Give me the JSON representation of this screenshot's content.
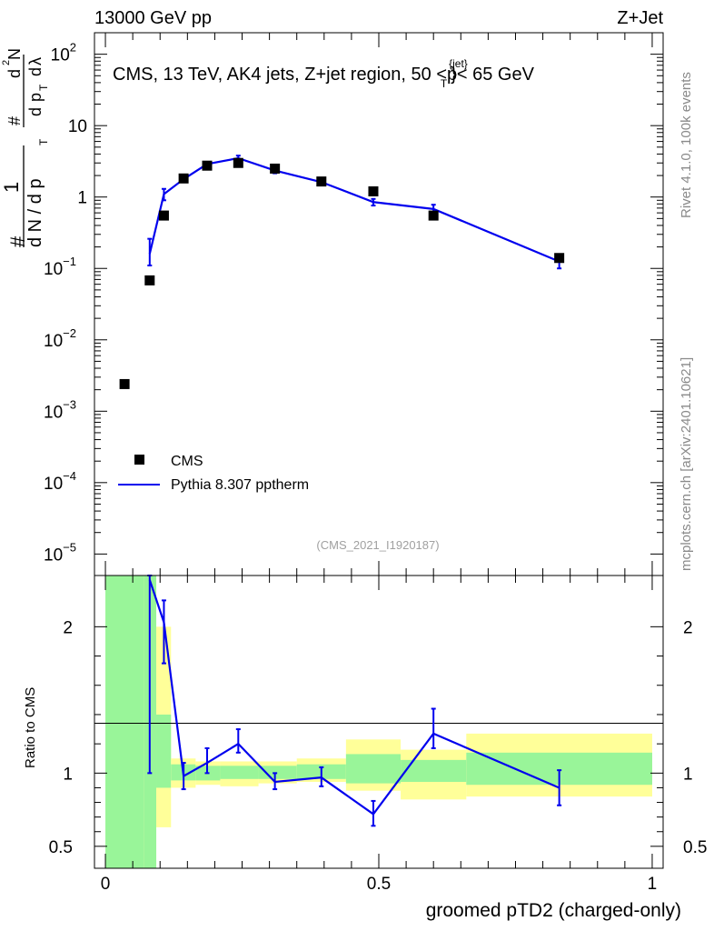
{
  "header": {
    "left": "13000 GeV pp",
    "right": "Z+Jet"
  },
  "main_title": "CMS, 13 TeV, AK4 jets, Z+jet region, 50 <p",
  "main_title_sup": "{jet}",
  "main_title_sub": "T",
  "main_title_end": "}< 65 GeV",
  "watermark": "(CMS_2021_I1920187)",
  "side_label_top": "Rivet 4.1.0,  100k events",
  "side_label_bottom": "mcplots.cern.ch [arXiv:2401.10621]",
  "legend": {
    "data_label": "CMS",
    "mc_label": "Pythia 8.307 pptherm"
  },
  "colors": {
    "data": "#000000",
    "mc": "#0000ee",
    "band_inner": "#99f599",
    "band_outer": "#ffff99"
  },
  "chart_data": [
    {
      "type": "scatter",
      "panel": "main",
      "ylabel_parts": [
        "#",
        "1",
        "d N / d p",
        "T",
        "#",
        "d",
        "p",
        "T",
        "d",
        "λ",
        "d",
        "2",
        "N"
      ],
      "yscale": "log",
      "ylim": [
        5e-06,
        200
      ],
      "xlim": [
        -0.02,
        1.02
      ],
      "y_tick_labels": [
        "10",
        "1",
        "10",
        "10",
        "10",
        "10",
        "10",
        "10"
      ],
      "y_tick_values": [
        10,
        1
      ],
      "y_decade_labels": [
        {
          "base": "10",
          "exp": "2",
          "value": 100
        },
        {
          "base": "10",
          "exp": "",
          "value": 10
        },
        {
          "base": "1",
          "exp": "",
          "value": 1
        },
        {
          "base": "10",
          "exp": "−1",
          "value": 0.1
        },
        {
          "base": "10",
          "exp": "−2",
          "value": 0.01
        },
        {
          "base": "10",
          "exp": "−3",
          "value": 0.001
        },
        {
          "base": "10",
          "exp": "−4",
          "value": 0.0001
        },
        {
          "base": "10",
          "exp": "−5",
          "value": 1e-05
        }
      ],
      "series": [
        {
          "name": "CMS",
          "style": "markers",
          "x": [
            0.035,
            0.081,
            0.107,
            0.143,
            0.186,
            0.243,
            0.31,
            0.395,
            0.49,
            0.6,
            0.83
          ],
          "y": [
            0.0024,
            0.068,
            0.55,
            1.82,
            2.75,
            3.0,
            2.5,
            1.65,
            1.2,
            0.55,
            0.14
          ]
        },
        {
          "name": "Pythia 8.307 pptherm",
          "style": "line",
          "x": [
            0.081,
            0.107,
            0.143,
            0.186,
            0.243,
            0.31,
            0.395,
            0.49,
            0.6,
            0.83
          ],
          "y": [
            0.16,
            1.1,
            1.78,
            2.9,
            3.5,
            2.35,
            1.62,
            0.85,
            0.68,
            0.125
          ],
          "yerr_lo": [
            0.11,
            0.9,
            1.62,
            2.7,
            3.2,
            2.15,
            1.5,
            0.76,
            0.58,
            0.1
          ],
          "yerr_hi": [
            0.26,
            1.3,
            1.96,
            3.1,
            3.8,
            2.55,
            1.75,
            0.94,
            0.78,
            0.15
          ]
        }
      ]
    },
    {
      "type": "line",
      "panel": "ratio",
      "ylabel": "Ratio to CMS",
      "xlabel": "groomed pTD2 (charged-only)",
      "ylim": [
        0.35,
        2.35
      ],
      "xlim": [
        -0.02,
        1.02
      ],
      "x_tick_labels": [
        "0",
        "0.5",
        "1"
      ],
      "x_tick_values": [
        0,
        0.5,
        1
      ],
      "y_tick_labels": [
        "2",
        "1",
        "0.5"
      ],
      "y_tick_values": [
        2,
        1,
        0.5
      ],
      "bands": {
        "edges": [
          0.0,
          0.07,
          0.093,
          0.12,
          0.165,
          0.21,
          0.28,
          0.35,
          0.44,
          0.54,
          0.66,
          1.0
        ],
        "inner_lo": [
          0.35,
          0.35,
          0.9,
          0.95,
          0.95,
          0.96,
          0.96,
          0.96,
          0.93,
          0.94,
          0.92
        ],
        "inner_hi": [
          2.35,
          2.35,
          1.4,
          1.06,
          1.05,
          1.05,
          1.05,
          1.06,
          1.13,
          1.09,
          1.14
        ],
        "outer_lo": [
          0.35,
          0.35,
          0.63,
          0.9,
          0.92,
          0.91,
          0.93,
          0.94,
          0.88,
          0.82,
          0.84
        ],
        "outer_hi": [
          2.35,
          2.35,
          2.0,
          1.1,
          1.08,
          1.08,
          1.08,
          1.1,
          1.23,
          1.16,
          1.27
        ]
      },
      "series": [
        {
          "name": "Pythia 8.307 pptherm",
          "x": [
            0.081,
            0.107,
            0.143,
            0.186,
            0.243,
            0.31,
            0.395,
            0.49,
            0.6,
            0.83
          ],
          "y": [
            2.32,
            2.03,
            0.98,
            1.07,
            1.2,
            0.94,
            0.97,
            0.72,
            1.27,
            0.9
          ],
          "yerr_lo": [
            1.0,
            1.75,
            0.89,
            1.0,
            1.14,
            0.89,
            0.91,
            0.64,
            1.17,
            0.78
          ],
          "yerr_hi": [
            2.35,
            2.18,
            1.07,
            1.17,
            1.3,
            1.0,
            1.04,
            0.81,
            1.44,
            1.02
          ]
        }
      ]
    }
  ]
}
